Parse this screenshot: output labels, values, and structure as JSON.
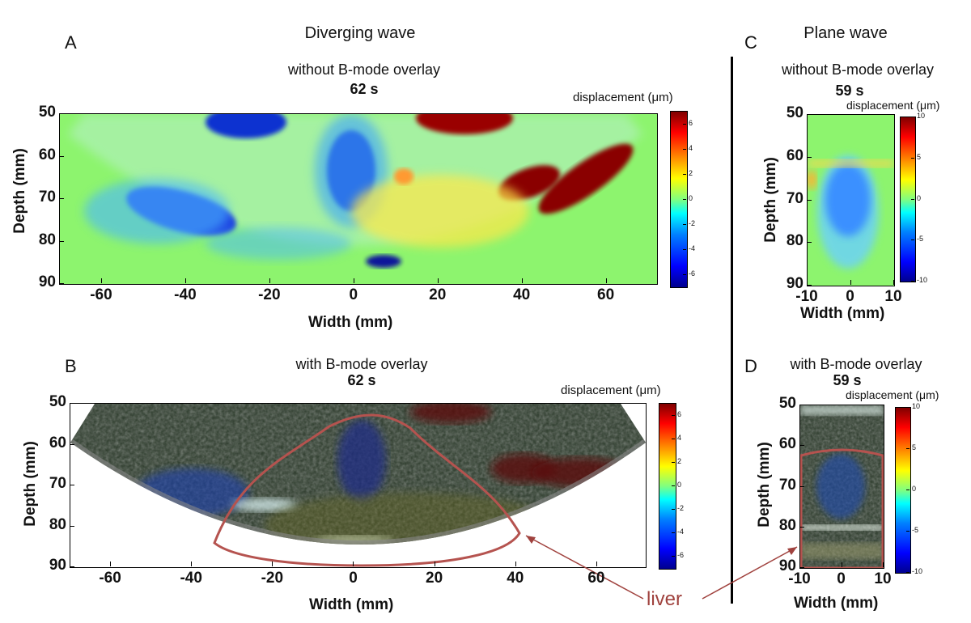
{
  "header": {
    "diverging_title": "Diverging wave",
    "plane_title": "Plane wave"
  },
  "panels": {
    "A": {
      "letter": "A",
      "subtitle": "without B-mode overlay",
      "time": "62 s"
    },
    "B": {
      "letter": "B",
      "subtitle": "with B-mode overlay",
      "time": "62 s"
    },
    "C": {
      "letter": "C",
      "subtitle": "without B-mode overlay",
      "time": "59 s"
    },
    "D": {
      "letter": "D",
      "subtitle": "with B-mode overlay",
      "time": "59 s"
    }
  },
  "labels": {
    "colorbar": "displacement (μm)",
    "ylabel": "Depth (mm)",
    "xlabel": "Width (mm)",
    "liver": "liver"
  },
  "colors": {
    "liver_outline": "#b5534f",
    "background_field": "#8df46e"
  },
  "chart_data": [
    {
      "type": "heatmap",
      "title": "without B-mode overlay",
      "xlabel": "Width (mm)",
      "ylabel": "Depth (mm)",
      "xticks": [
        "-60",
        "-40",
        "-20",
        "0",
        "20",
        "40",
        "60"
      ],
      "yticks": [
        "50",
        "60",
        "70",
        "80",
        "90"
      ],
      "xlim": [
        -70,
        72
      ],
      "ylim": [
        90,
        50
      ],
      "colorbar_label": "displacement (μm)",
      "colorbar_ticks": [
        "6",
        "4",
        "2",
        "0",
        "-2",
        "-4",
        "-6"
      ],
      "clim": [
        -7,
        7
      ]
    },
    {
      "type": "heatmap",
      "title": "with B-mode overlay",
      "xlabel": "Width (mm)",
      "ylabel": "Depth (mm)",
      "xticks": [
        "-60",
        "-40",
        "-20",
        "0",
        "20",
        "40",
        "60"
      ],
      "yticks": [
        "50",
        "60",
        "70",
        "80",
        "90"
      ],
      "xlim": [
        -70,
        72
      ],
      "ylim": [
        90,
        50
      ],
      "colorbar_label": "displacement (μm)",
      "colorbar_ticks": [
        "6",
        "4",
        "2",
        "0",
        "-2",
        "-4",
        "-6"
      ],
      "clim": [
        -7,
        7
      ]
    },
    {
      "type": "heatmap",
      "title": "without B-mode overlay",
      "xlabel": "Width (mm)",
      "ylabel": "Depth (mm)",
      "xticks": [
        "-10",
        "0",
        "10"
      ],
      "yticks": [
        "50",
        "60",
        "70",
        "80",
        "90"
      ],
      "xlim": [
        -10,
        10
      ],
      "ylim": [
        90,
        50
      ],
      "colorbar_label": "displacement (μm)",
      "colorbar_ticks": [
        "10",
        "5",
        "0",
        "-5",
        "-10"
      ],
      "clim": [
        -10,
        10
      ]
    },
    {
      "type": "heatmap",
      "title": "with B-mode overlay",
      "xlabel": "Width (mm)",
      "ylabel": "Depth (mm)",
      "xticks": [
        "-10",
        "0",
        "10"
      ],
      "yticks": [
        "50",
        "60",
        "70",
        "80",
        "90"
      ],
      "xlim": [
        -10,
        10
      ],
      "ylim": [
        90,
        50
      ],
      "colorbar_label": "displacement (μm)",
      "colorbar_ticks": [
        "10",
        "5",
        "0",
        "-5",
        "-10"
      ],
      "clim": [
        -10,
        10
      ]
    }
  ]
}
